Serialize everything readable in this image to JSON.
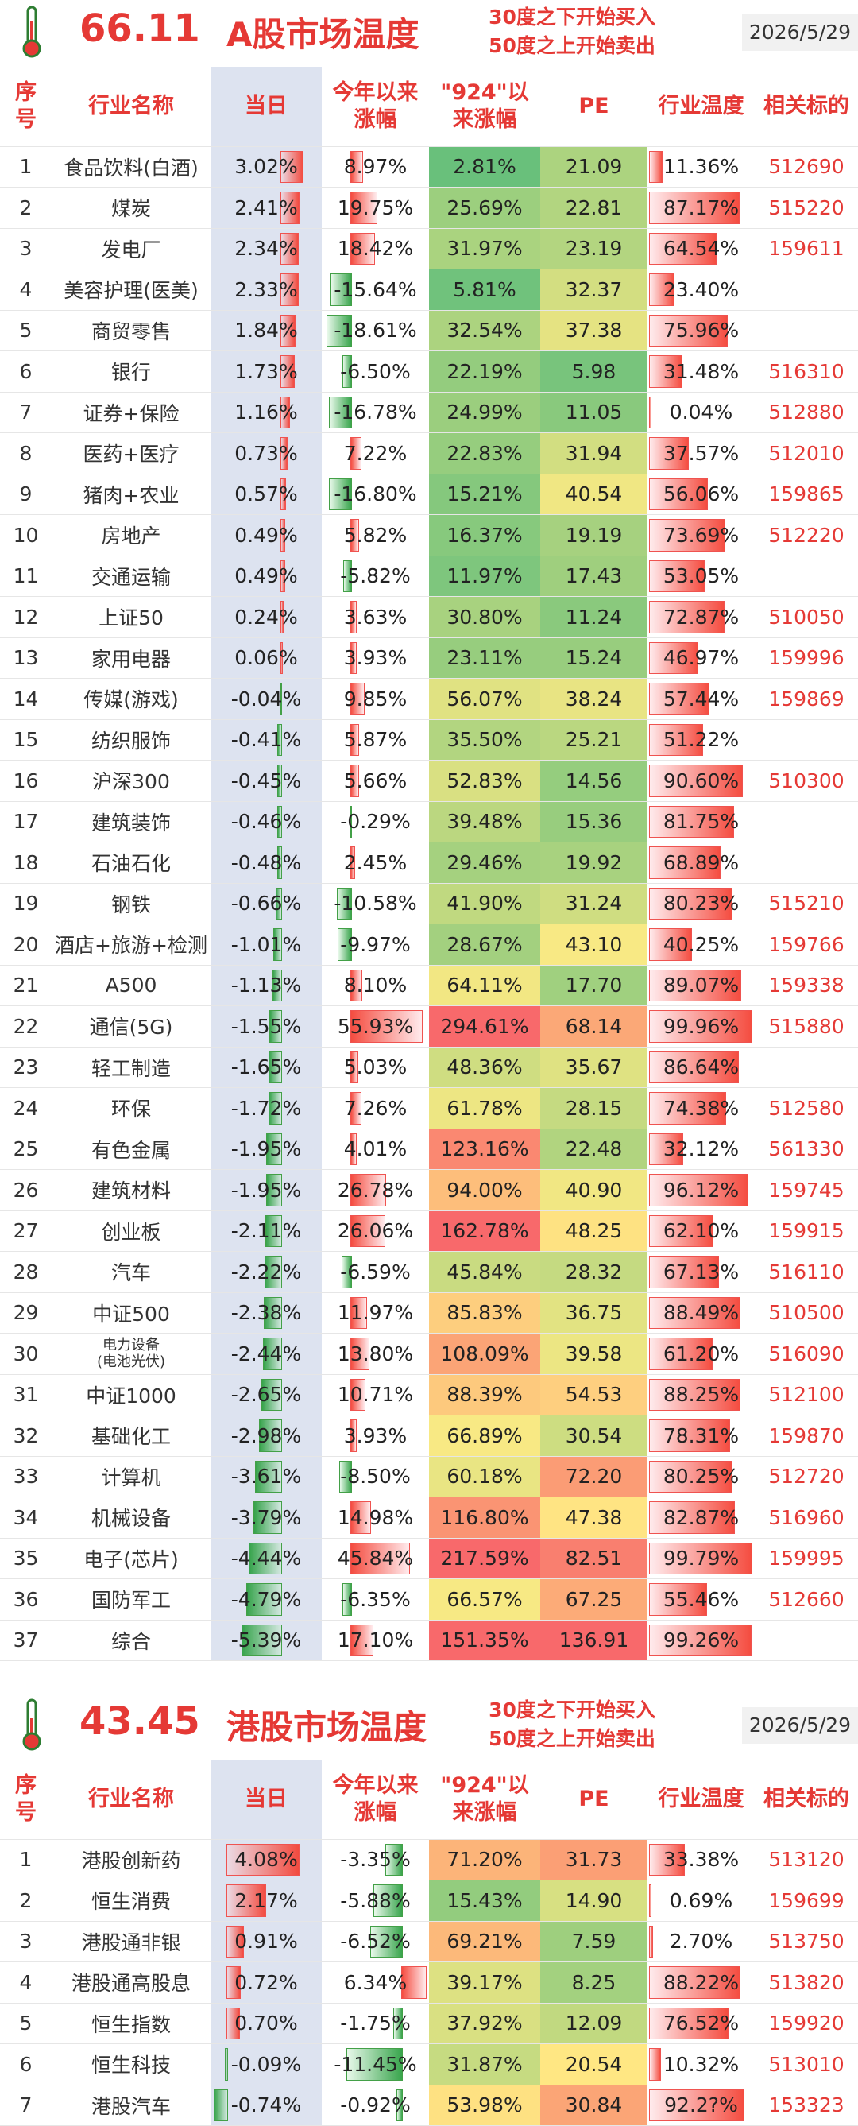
{
  "headers": {
    "idx": [
      "序",
      "号"
    ],
    "name": "行业名称",
    "day": "当日",
    "ytd": [
      "今年以来",
      "涨幅"
    ],
    "since924": [
      "\"924\"以",
      "来涨幅"
    ],
    "pe": "PE",
    "temp": "行业温度",
    "code": "相关标的"
  },
  "a_share": {
    "temperature": "66.11",
    "title": "A股市场温度",
    "rule_line1": "30度之下开始买入",
    "rule_line2": "50度之上开始卖出",
    "date": "2026/5/29",
    "rows": [
      {
        "idx": "1",
        "name": "食品饮料(白酒)",
        "day": "3.02%",
        "ytd": "8.97%",
        "since924": "2.81%",
        "pe": "21.09",
        "temp": "11.36%",
        "code": "512690"
      },
      {
        "idx": "2",
        "name": "煤炭",
        "day": "2.41%",
        "ytd": "19.75%",
        "since924": "25.69%",
        "pe": "22.81",
        "temp": "87.17%",
        "code": "515220"
      },
      {
        "idx": "3",
        "name": "发电厂",
        "day": "2.34%",
        "ytd": "18.42%",
        "since924": "31.97%",
        "pe": "23.19",
        "temp": "64.54%",
        "code": "159611"
      },
      {
        "idx": "4",
        "name": "美容护理(医美)",
        "day": "2.33%",
        "ytd": "-15.64%",
        "since924": "5.81%",
        "pe": "32.37",
        "temp": "23.40%",
        "code": ""
      },
      {
        "idx": "5",
        "name": "商贸零售",
        "day": "1.84%",
        "ytd": "-18.61%",
        "since924": "32.54%",
        "pe": "37.38",
        "temp": "75.96%",
        "code": ""
      },
      {
        "idx": "6",
        "name": "银行",
        "day": "1.73%",
        "ytd": "-6.50%",
        "since924": "22.19%",
        "pe": "5.98",
        "temp": "31.48%",
        "code": "516310"
      },
      {
        "idx": "7",
        "name": "证券+保险",
        "day": "1.16%",
        "ytd": "-16.78%",
        "since924": "24.99%",
        "pe": "11.05",
        "temp": "0.04%",
        "code": "512880"
      },
      {
        "idx": "8",
        "name": "医药+医疗",
        "day": "0.73%",
        "ytd": "7.22%",
        "since924": "22.83%",
        "pe": "31.94",
        "temp": "37.57%",
        "code": "512010"
      },
      {
        "idx": "9",
        "name": "猪肉+农业",
        "day": "0.57%",
        "ytd": "-16.80%",
        "since924": "15.21%",
        "pe": "40.54",
        "temp": "56.06%",
        "code": "159865"
      },
      {
        "idx": "10",
        "name": "房地产",
        "day": "0.49%",
        "ytd": "5.82%",
        "since924": "16.37%",
        "pe": "19.19",
        "temp": "73.69%",
        "code": "512220"
      },
      {
        "idx": "11",
        "name": "交通运输",
        "day": "0.49%",
        "ytd": "-5.82%",
        "since924": "11.97%",
        "pe": "17.43",
        "temp": "53.05%",
        "code": ""
      },
      {
        "idx": "12",
        "name": "上证50",
        "day": "0.24%",
        "ytd": "3.63%",
        "since924": "30.80%",
        "pe": "11.24",
        "temp": "72.87%",
        "code": "510050"
      },
      {
        "idx": "13",
        "name": "家用电器",
        "day": "0.06%",
        "ytd": "3.93%",
        "since924": "23.11%",
        "pe": "15.24",
        "temp": "46.97%",
        "code": "159996"
      },
      {
        "idx": "14",
        "name": "传媒(游戏)",
        "day": "-0.04%",
        "ytd": "9.85%",
        "since924": "56.07%",
        "pe": "38.24",
        "temp": "57.44%",
        "code": "159869"
      },
      {
        "idx": "15",
        "name": "纺织服饰",
        "day": "-0.41%",
        "ytd": "5.87%",
        "since924": "35.50%",
        "pe": "25.21",
        "temp": "51.22%",
        "code": ""
      },
      {
        "idx": "16",
        "name": "沪深300",
        "day": "-0.45%",
        "ytd": "5.66%",
        "since924": "52.83%",
        "pe": "14.56",
        "temp": "90.60%",
        "code": "510300"
      },
      {
        "idx": "17",
        "name": "建筑装饰",
        "day": "-0.46%",
        "ytd": "-0.29%",
        "since924": "39.48%",
        "pe": "15.36",
        "temp": "81.75%",
        "code": ""
      },
      {
        "idx": "18",
        "name": "石油石化",
        "day": "-0.48%",
        "ytd": "2.45%",
        "since924": "29.46%",
        "pe": "19.92",
        "temp": "68.89%",
        "code": ""
      },
      {
        "idx": "19",
        "name": "钢铁",
        "day": "-0.66%",
        "ytd": "-10.58%",
        "since924": "41.90%",
        "pe": "31.24",
        "temp": "80.23%",
        "code": "515210"
      },
      {
        "idx": "20",
        "name": "酒店+旅游+检测",
        "day": "-1.01%",
        "ytd": "-9.97%",
        "since924": "28.67%",
        "pe": "43.10",
        "temp": "40.25%",
        "code": "159766"
      },
      {
        "idx": "21",
        "name": "A500",
        "day": "-1.13%",
        "ytd": "8.10%",
        "since924": "64.11%",
        "pe": "17.70",
        "temp": "89.07%",
        "code": "159338"
      },
      {
        "idx": "22",
        "name": "通信(5G)",
        "day": "-1.55%",
        "ytd": "55.93%",
        "since924": "294.61%",
        "pe": "68.14",
        "temp": "99.96%",
        "code": "515880"
      },
      {
        "idx": "23",
        "name": "轻工制造",
        "day": "-1.65%",
        "ytd": "5.03%",
        "since924": "48.36%",
        "pe": "35.67",
        "temp": "86.64%",
        "code": ""
      },
      {
        "idx": "24",
        "name": "环保",
        "day": "-1.72%",
        "ytd": "7.26%",
        "since924": "61.78%",
        "pe": "28.15",
        "temp": "74.38%",
        "code": "512580"
      },
      {
        "idx": "25",
        "name": "有色金属",
        "day": "-1.95%",
        "ytd": "4.01%",
        "since924": "123.16%",
        "pe": "22.48",
        "temp": "32.12%",
        "code": "561330"
      },
      {
        "idx": "26",
        "name": "建筑材料",
        "day": "-1.95%",
        "ytd": "26.78%",
        "since924": "94.00%",
        "pe": "40.90",
        "temp": "96.12%",
        "code": "159745"
      },
      {
        "idx": "27",
        "name": "创业板",
        "day": "-2.11%",
        "ytd": "26.06%",
        "since924": "162.78%",
        "pe": "48.25",
        "temp": "62.10%",
        "code": "159915"
      },
      {
        "idx": "28",
        "name": "汽车",
        "day": "-2.22%",
        "ytd": "-6.59%",
        "since924": "45.84%",
        "pe": "28.32",
        "temp": "67.13%",
        "code": "516110"
      },
      {
        "idx": "29",
        "name": "中证500",
        "day": "-2.38%",
        "ytd": "11.97%",
        "since924": "85.83%",
        "pe": "36.75",
        "temp": "88.49%",
        "code": "510500"
      },
      {
        "idx": "30",
        "name": "电力设备",
        "name2": "(电池光伏)",
        "day": "-2.44%",
        "ytd": "13.80%",
        "since924": "108.09%",
        "pe": "39.58",
        "temp": "61.20%",
        "code": "516090"
      },
      {
        "idx": "31",
        "name": "中证1000",
        "day": "-2.65%",
        "ytd": "10.71%",
        "since924": "88.39%",
        "pe": "54.53",
        "temp": "88.25%",
        "code": "512100"
      },
      {
        "idx": "32",
        "name": "基础化工",
        "day": "-2.98%",
        "ytd": "3.93%",
        "since924": "66.89%",
        "pe": "30.54",
        "temp": "78.31%",
        "code": "159870"
      },
      {
        "idx": "33",
        "name": "计算机",
        "day": "-3.61%",
        "ytd": "-8.50%",
        "since924": "60.18%",
        "pe": "72.20",
        "temp": "80.25%",
        "code": "512720"
      },
      {
        "idx": "34",
        "name": "机械设备",
        "day": "-3.79%",
        "ytd": "14.98%",
        "since924": "116.80%",
        "pe": "47.38",
        "temp": "82.87%",
        "code": "516960"
      },
      {
        "idx": "35",
        "name": "电子(芯片)",
        "day": "-4.44%",
        "ytd": "45.84%",
        "since924": "217.59%",
        "pe": "82.51",
        "temp": "99.79%",
        "code": "159995"
      },
      {
        "idx": "36",
        "name": "国防军工",
        "day": "-4.79%",
        "ytd": "-6.35%",
        "since924": "66.57%",
        "pe": "67.25",
        "temp": "55.46%",
        "code": "512660"
      },
      {
        "idx": "37",
        "name": "综合",
        "day": "-5.39%",
        "ytd": "17.10%",
        "since924": "151.35%",
        "pe": "136.91",
        "temp": "99.26%",
        "code": ""
      }
    ]
  },
  "hk_share": {
    "temperature": "43.45",
    "title": "港股市场温度",
    "rule_line1": "30度之下开始买入",
    "rule_line2": "50度之上开始卖出",
    "date": "2026/5/29",
    "rows": [
      {
        "idx": "1",
        "name": "港股创新药",
        "day": "4.08%",
        "ytd": "-3.35%",
        "since924": "71.20%",
        "pe": "31.73",
        "temp": "33.38%",
        "code": "513120"
      },
      {
        "idx": "2",
        "name": "恒生消费",
        "day": "2.17%",
        "ytd": "-5.88%",
        "since924": "15.43%",
        "pe": "14.90",
        "temp": "0.69%",
        "code": "159699"
      },
      {
        "idx": "3",
        "name": "港股通非银",
        "day": "0.91%",
        "ytd": "-6.52%",
        "since924": "69.21%",
        "pe": "7.59",
        "temp": "2.70%",
        "code": "513750"
      },
      {
        "idx": "4",
        "name": "港股通高股息",
        "day": "0.72%",
        "ytd": "6.34%",
        "since924": "39.17%",
        "pe": "8.25",
        "temp": "88.22%",
        "code": "513820"
      },
      {
        "idx": "5",
        "name": "恒生指数",
        "day": "0.70%",
        "ytd": "-1.75%",
        "since924": "37.92%",
        "pe": "12.09",
        "temp": "76.52%",
        "code": "159920"
      },
      {
        "idx": "6",
        "name": "恒生科技",
        "day": "-0.09%",
        "ytd": "-11.45%",
        "since924": "31.87%",
        "pe": "20.54",
        "temp": "10.32%",
        "code": "513010"
      },
      {
        "idx": "7",
        "name": "港股汽车",
        "day": "-0.74%",
        "ytd": "-0.92%",
        "since924": "53.98%",
        "pe": "30.84",
        "temp": "92.2?%",
        "code": "153323"
      }
    ]
  },
  "colors": {
    "accent": "#e53935",
    "pos_bar": "#f44336",
    "neg_bar": "#2ea043",
    "day_bg": "#dde3f0"
  }
}
